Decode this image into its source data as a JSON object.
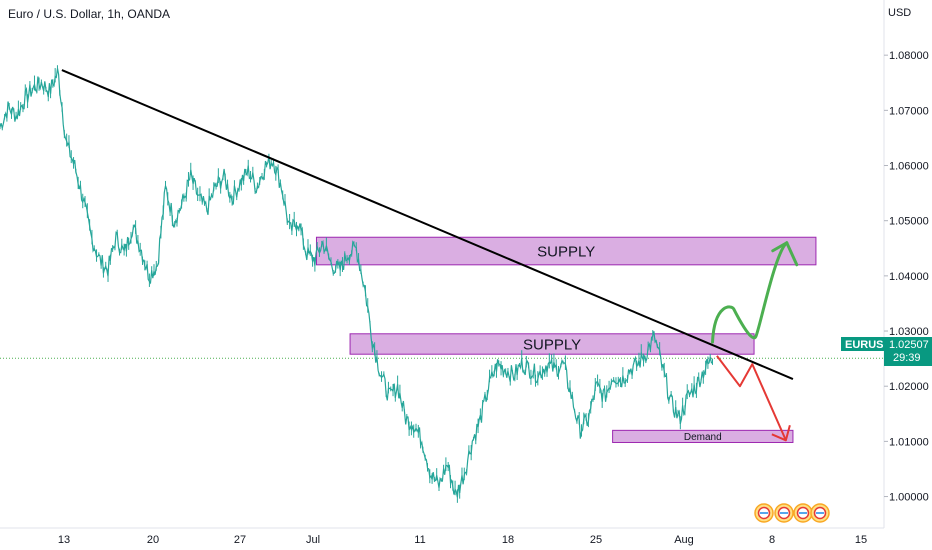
{
  "chart_data": {
    "type": "line",
    "title": "Euro / U.S. Dollar, 1h, OANDA",
    "currency": "USD",
    "symbol": "EURUSD",
    "last_price": "1.02507",
    "countdown": "29:39",
    "y_ticks": [
      "1.08000",
      "1.07000",
      "1.06000",
      "1.05000",
      "1.04000",
      "1.03000",
      "1.02000",
      "1.01000",
      "1.00000"
    ],
    "x_ticks": [
      "13",
      "20",
      "27",
      "Jul",
      "11",
      "18",
      "25",
      "Aug",
      "8",
      "15"
    ],
    "ylim": [
      0.9943,
      1.09
    ],
    "colors": {
      "up": "#26a69a",
      "down": "#26a69a",
      "trendline": "#000000",
      "zone_fill": "#ce93d8",
      "zone_border": "#9c27b0",
      "bull_path": "#4caf50",
      "bear_path": "#e53935",
      "price_line": "#4caf50",
      "price_badge": "#089981"
    },
    "series": [
      {
        "values": [
          1.067,
          1.0705,
          1.069,
          1.072,
          1.074,
          1.075,
          1.0735,
          1.077,
          1.064,
          1.06,
          1.054,
          1.047,
          1.043,
          1.041,
          1.047,
          1.044,
          1.049,
          1.045,
          1.04,
          1.042,
          1.056,
          1.05,
          1.053,
          1.058,
          1.054,
          1.052,
          1.056,
          1.058,
          1.054,
          1.057,
          1.059,
          1.056,
          1.06,
          1.061,
          1.056,
          1.048,
          1.05,
          1.044,
          1.043,
          1.046,
          1.042,
          1.041,
          1.044,
          1.045,
          1.038,
          1.028,
          1.022,
          1.018,
          1.02,
          1.014,
          1.013,
          1.01,
          1.004,
          1.002,
          1.006,
          1.0,
          1.004,
          1.01,
          1.014,
          1.02,
          1.024,
          1.023,
          1.022,
          1.024,
          1.023,
          1.022,
          1.024,
          1.023,
          1.024,
          1.018,
          1.012,
          1.014,
          1.02,
          1.018,
          1.022,
          1.021,
          1.023,
          1.024,
          1.026,
          1.029,
          1.023,
          1.017,
          1.014,
          1.018,
          1.02,
          1.023,
          1.025
        ]
      }
    ],
    "trendline": [
      {
        "t": 0.07,
        "price": 1.0773
      },
      {
        "t": 0.897,
        "price": 1.0213
      }
    ],
    "zones": [
      {
        "label": "SUPPLY",
        "t0": 0.358,
        "t1": 0.923,
        "top": 1.047,
        "bottom": 1.042
      },
      {
        "label": "SUPPLY",
        "t0": 0.396,
        "t1": 0.853,
        "top": 1.0295,
        "bottom": 1.0258
      },
      {
        "label": "Demand",
        "t0": 0.693,
        "t1": 0.897,
        "top": 1.012,
        "bottom": 1.0098
      }
    ],
    "bull_path": [
      {
        "t": 0.806,
        "price": 1.028
      },
      {
        "t": 0.83,
        "price": 1.034
      },
      {
        "t": 0.855,
        "price": 1.029
      },
      {
        "t": 0.89,
        "price": 1.046
      }
    ],
    "bear_path": [
      {
        "t": 0.811,
        "price": 1.0255
      },
      {
        "t": 0.837,
        "price": 1.02
      },
      {
        "t": 0.851,
        "price": 1.024
      },
      {
        "t": 0.889,
        "price": 1.0102
      }
    ]
  }
}
